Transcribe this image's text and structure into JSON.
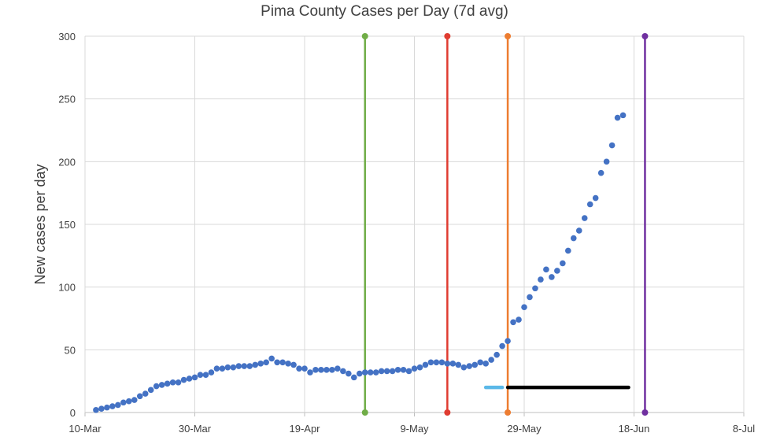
{
  "chart_data": {
    "type": "scatter",
    "title": "Pima County Cases per Day (7d avg)",
    "ylabel": "New cases per day",
    "xlabel": "",
    "ylim": [
      0,
      300
    ],
    "y_ticks": [
      0,
      50,
      100,
      150,
      200,
      250,
      300
    ],
    "xlim": [
      "2020-03-10",
      "2020-07-08"
    ],
    "x_ticks": [
      {
        "date": "2020-03-10",
        "label": "10-Mar"
      },
      {
        "date": "2020-03-30",
        "label": "30-Mar"
      },
      {
        "date": "2020-04-19",
        "label": "19-Apr"
      },
      {
        "date": "2020-05-09",
        "label": "9-May"
      },
      {
        "date": "2020-05-29",
        "label": "29-May"
      },
      {
        "date": "2020-06-18",
        "label": "18-Jun"
      },
      {
        "date": "2020-07-08",
        "label": "8-Jul"
      }
    ],
    "grid": true,
    "point_color": "#4472c4",
    "points": [
      [
        "2020-03-12",
        2
      ],
      [
        "2020-03-13",
        3
      ],
      [
        "2020-03-14",
        4
      ],
      [
        "2020-03-15",
        5
      ],
      [
        "2020-03-16",
        6
      ],
      [
        "2020-03-17",
        8
      ],
      [
        "2020-03-18",
        9
      ],
      [
        "2020-03-19",
        10
      ],
      [
        "2020-03-20",
        13
      ],
      [
        "2020-03-21",
        15
      ],
      [
        "2020-03-22",
        18
      ],
      [
        "2020-03-23",
        21
      ],
      [
        "2020-03-24",
        22
      ],
      [
        "2020-03-25",
        23
      ],
      [
        "2020-03-26",
        24
      ],
      [
        "2020-03-27",
        24
      ],
      [
        "2020-03-28",
        26
      ],
      [
        "2020-03-29",
        27
      ],
      [
        "2020-03-30",
        28
      ],
      [
        "2020-03-31",
        30
      ],
      [
        "2020-04-01",
        30
      ],
      [
        "2020-04-02",
        32
      ],
      [
        "2020-04-03",
        35
      ],
      [
        "2020-04-04",
        35
      ],
      [
        "2020-04-05",
        36
      ],
      [
        "2020-04-06",
        36
      ],
      [
        "2020-04-07",
        37
      ],
      [
        "2020-04-08",
        37
      ],
      [
        "2020-04-09",
        37
      ],
      [
        "2020-04-10",
        38
      ],
      [
        "2020-04-11",
        39
      ],
      [
        "2020-04-12",
        40
      ],
      [
        "2020-04-13",
        43
      ],
      [
        "2020-04-14",
        40
      ],
      [
        "2020-04-15",
        40
      ],
      [
        "2020-04-16",
        39
      ],
      [
        "2020-04-17",
        38
      ],
      [
        "2020-04-18",
        35
      ],
      [
        "2020-04-19",
        35
      ],
      [
        "2020-04-20",
        32
      ],
      [
        "2020-04-21",
        34
      ],
      [
        "2020-04-22",
        34
      ],
      [
        "2020-04-23",
        34
      ],
      [
        "2020-04-24",
        34
      ],
      [
        "2020-04-25",
        35
      ],
      [
        "2020-04-26",
        33
      ],
      [
        "2020-04-27",
        31
      ],
      [
        "2020-04-28",
        28
      ],
      [
        "2020-04-29",
        31
      ],
      [
        "2020-04-30",
        32
      ],
      [
        "2020-05-01",
        32
      ],
      [
        "2020-05-02",
        32
      ],
      [
        "2020-05-03",
        33
      ],
      [
        "2020-05-04",
        33
      ],
      [
        "2020-05-05",
        33
      ],
      [
        "2020-05-06",
        34
      ],
      [
        "2020-05-07",
        34
      ],
      [
        "2020-05-08",
        33
      ],
      [
        "2020-05-09",
        35
      ],
      [
        "2020-05-10",
        36
      ],
      [
        "2020-05-11",
        38
      ],
      [
        "2020-05-12",
        40
      ],
      [
        "2020-05-13",
        40
      ],
      [
        "2020-05-14",
        40
      ],
      [
        "2020-05-15",
        39
      ],
      [
        "2020-05-16",
        39
      ],
      [
        "2020-05-17",
        38
      ],
      [
        "2020-05-18",
        36
      ],
      [
        "2020-05-19",
        37
      ],
      [
        "2020-05-20",
        38
      ],
      [
        "2020-05-21",
        40
      ],
      [
        "2020-05-22",
        39
      ],
      [
        "2020-05-23",
        42
      ],
      [
        "2020-05-24",
        46
      ],
      [
        "2020-05-25",
        53
      ],
      [
        "2020-05-26",
        57
      ],
      [
        "2020-05-27",
        72
      ],
      [
        "2020-05-28",
        74
      ],
      [
        "2020-05-29",
        84
      ],
      [
        "2020-05-30",
        92
      ],
      [
        "2020-05-31",
        99
      ],
      [
        "2020-06-01",
        106
      ],
      [
        "2020-06-02",
        114
      ],
      [
        "2020-06-03",
        108
      ],
      [
        "2020-06-04",
        113
      ],
      [
        "2020-06-05",
        119
      ],
      [
        "2020-06-06",
        129
      ],
      [
        "2020-06-07",
        139
      ],
      [
        "2020-06-08",
        145
      ],
      [
        "2020-06-09",
        155
      ],
      [
        "2020-06-10",
        166
      ],
      [
        "2020-06-11",
        171
      ],
      [
        "2020-06-12",
        191
      ],
      [
        "2020-06-13",
        200
      ],
      [
        "2020-06-14",
        213
      ],
      [
        "2020-06-15",
        235
      ],
      [
        "2020-06-16",
        237
      ]
    ],
    "vertical_lines": [
      {
        "date": "2020-04-30",
        "color": "#70ad47"
      },
      {
        "date": "2020-05-15",
        "color": "#e03c31"
      },
      {
        "date": "2020-05-26",
        "color": "#ed7d31"
      },
      {
        "date": "2020-06-20",
        "color": "#7030a0"
      }
    ],
    "horizontal_segments": [
      {
        "start": "2020-05-22",
        "end": "2020-05-25",
        "y": 20,
        "color": "#5bb8e8"
      },
      {
        "start": "2020-05-26",
        "end": "2020-06-17",
        "y": 20,
        "color": "#000000"
      }
    ]
  }
}
